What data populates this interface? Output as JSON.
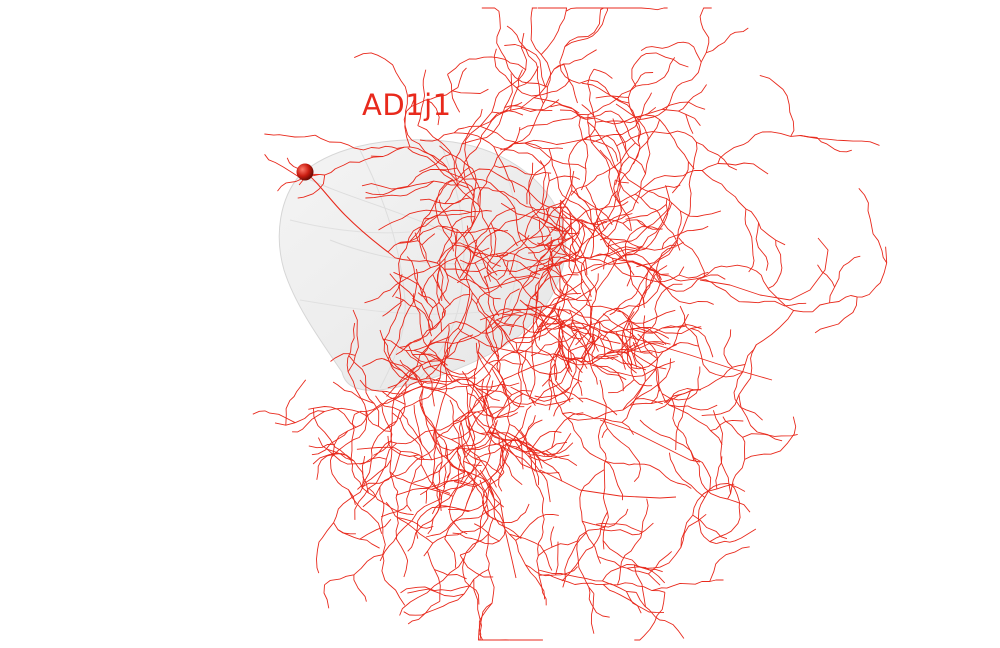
{
  "neuron": {
    "name": "AD1j1",
    "color": "#e8291c",
    "soma_color": "#c91c10"
  },
  "neuropil": {
    "fill": "#eeeeee",
    "edge": "#d6d6d6"
  }
}
